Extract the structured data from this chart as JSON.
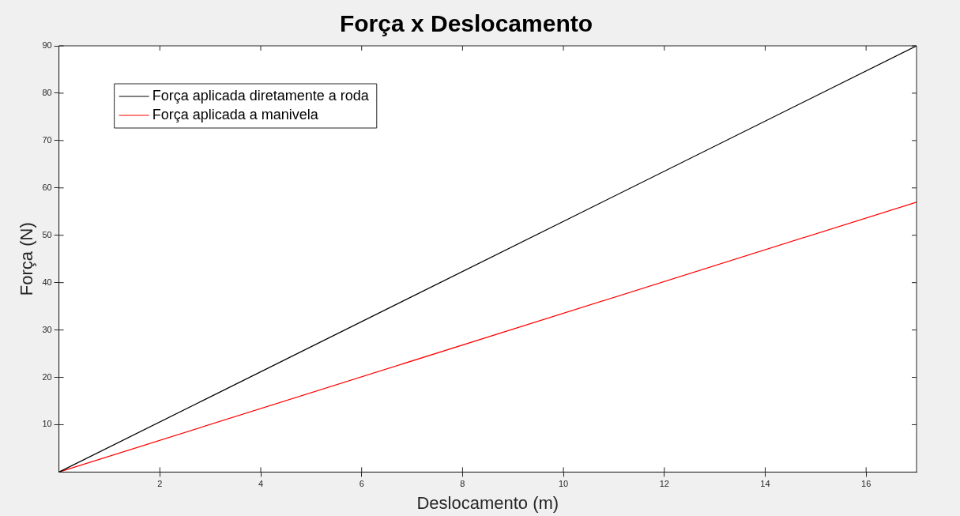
{
  "chart_data": {
    "type": "line",
    "title": "Força x Deslocamento",
    "xlabel": "Deslocamento (m)",
    "ylabel": "Força (N)",
    "x": [
      0,
      17
    ],
    "series": [
      {
        "name": "Força aplicada diretamente a roda",
        "color": "#000000",
        "values": [
          0,
          90
        ]
      },
      {
        "name": "Força aplicada a manivela",
        "color": "#ff0000",
        "values": [
          0,
          57
        ]
      }
    ],
    "xlim": [
      0,
      17
    ],
    "xticks": [
      2,
      4,
      6,
      8,
      10,
      12,
      14,
      16
    ],
    "ylim": [
      0,
      90
    ],
    "yticks": [
      10,
      20,
      30,
      40,
      50,
      60,
      70,
      80,
      90
    ],
    "grid": false,
    "legend": "top left",
    "marker": "none",
    "line_style": "solid"
  }
}
